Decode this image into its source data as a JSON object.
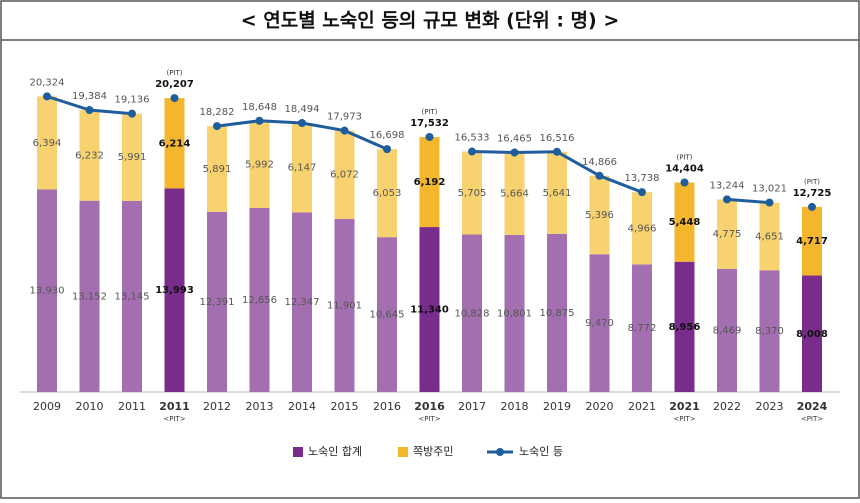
{
  "chart_data": {
    "type": "stacked-bar-line",
    "title": "< 연도별 노숙인 등의 규모 변화 (단위 : 명) >",
    "categories": [
      "2009",
      "2010",
      "2011",
      "2011",
      "2012",
      "2013",
      "2014",
      "2015",
      "2016",
      "2016",
      "2017",
      "2018",
      "2019",
      "2020",
      "2021",
      "2021",
      "2022",
      "2023",
      "2024"
    ],
    "pit": [
      false,
      false,
      false,
      true,
      false,
      false,
      false,
      false,
      false,
      true,
      false,
      false,
      false,
      false,
      false,
      true,
      false,
      false,
      true
    ],
    "pit_label": "<PIT>",
    "pit_note": "(PIT)",
    "ylim": [
      0,
      22000
    ],
    "legend": "bottom",
    "series": [
      {
        "name": "노숙인 합계",
        "color": "#a46fb0",
        "pit_color": "#7a2c8c",
        "values": [
          13930,
          13152,
          13145,
          13993,
          12391,
          12656,
          12347,
          11901,
          10645,
          11340,
          10828,
          10801,
          10875,
          9470,
          8772,
          8956,
          8469,
          8370,
          8008
        ],
        "value_labels": [
          "13,930",
          "13,152",
          "13,145",
          "13,993",
          "12,391",
          "12,656",
          "12,347",
          "11,901",
          "10,645",
          "11,340",
          "10,828",
          "10,801",
          "10,875",
          "9,470",
          "8,772",
          "8,956",
          "8,469",
          "8,370",
          "8,008"
        ]
      },
      {
        "name": "쪽방주민",
        "color": "#f7d26e",
        "pit_color": "#f4b62c",
        "values": [
          6394,
          6232,
          5991,
          6214,
          5891,
          5992,
          6147,
          6072,
          6053,
          6192,
          5705,
          5664,
          5641,
          5396,
          4966,
          5448,
          4775,
          4651,
          4717
        ],
        "value_labels": [
          "6,394",
          "6,232",
          "5,991",
          "6,214",
          "5,891",
          "5,992",
          "6,147",
          "6,072",
          "6,053",
          "6,192",
          "5,705",
          "5,664",
          "5,641",
          "5,396",
          "4,966",
          "5,448",
          "4,775",
          "4,651",
          "4,717"
        ]
      },
      {
        "name": "노숙인 등",
        "color": "#1f5d9c",
        "kind": "line",
        "values": [
          20324,
          19384,
          19136,
          20207,
          18282,
          18648,
          18494,
          17973,
          16698,
          17532,
          16533,
          16465,
          16516,
          14866,
          13738,
          14404,
          13244,
          13021,
          12725
        ],
        "value_labels": [
          "20,324",
          "19,384",
          "19,136",
          "20,207",
          "18,282",
          "18,648",
          "18,494",
          "17,973",
          "16,698",
          "17,532",
          "16,533",
          "16,465",
          "16,516",
          "14,866",
          "13,738",
          "14,404",
          "13,244",
          "13,021",
          "12,725"
        ]
      }
    ]
  }
}
